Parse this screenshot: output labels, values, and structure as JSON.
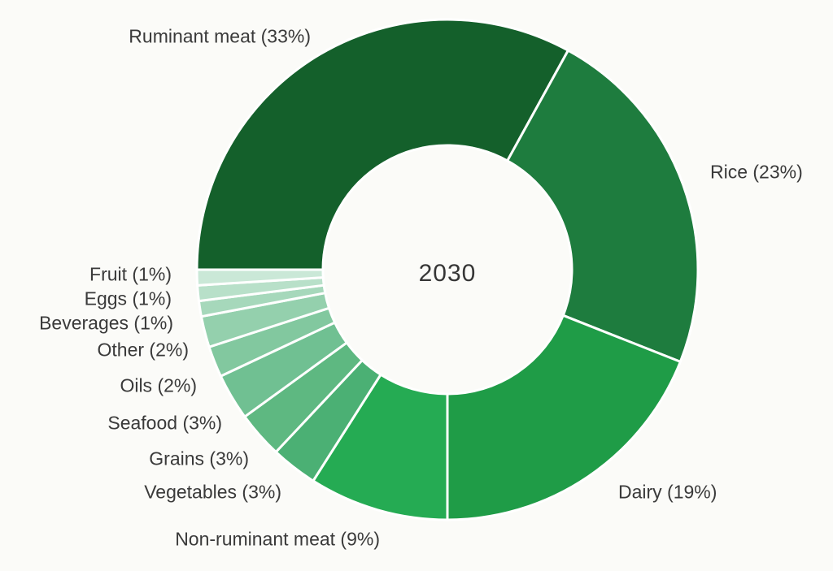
{
  "figure": {
    "background_color": "#fbfbf8",
    "label_text_color": "#3a3a3a",
    "gap_color": "#ffffff"
  },
  "chart_data": {
    "type": "pie",
    "subtype": "donut",
    "title": "",
    "center_label": "2030",
    "units": "%",
    "start_angle_deg_clockwise_from_top": 270,
    "direction": "clockwise",
    "inner_radius_ratio": 0.5,
    "legend_position": "around-chart",
    "grid": false,
    "segments": [
      {
        "name": "Ruminant meat",
        "value": 33,
        "label": "Ruminant meat (33%)",
        "color": "#14602b"
      },
      {
        "name": "Rice",
        "value": 23,
        "label": "Rice (23%)",
        "color": "#1e7c3e"
      },
      {
        "name": "Dairy",
        "value": 19,
        "label": "Dairy (19%)",
        "color": "#1f9c47"
      },
      {
        "name": "Non-ruminant meat",
        "value": 9,
        "label": "Non-ruminant meat (9%)",
        "color": "#25ab53"
      },
      {
        "name": "Vegetables",
        "value": 3,
        "label": "Vegetables (3%)",
        "color": "#4bb074"
      },
      {
        "name": "Grains",
        "value": 3,
        "label": "Grains (3%)",
        "color": "#5eb881"
      },
      {
        "name": "Seafood",
        "value": 3,
        "label": "Seafood (3%)",
        "color": "#70c092"
      },
      {
        "name": "Oils",
        "value": 2,
        "label": "Oils (2%)",
        "color": "#82c89f"
      },
      {
        "name": "Other",
        "value": 2,
        "label": "Other (2%)",
        "color": "#94d0ad"
      },
      {
        "name": "Beverages",
        "value": 1,
        "label": "Beverages (1%)",
        "color": "#a6d8bb"
      },
      {
        "name": "Eggs",
        "value": 1,
        "label": "Eggs (1%)",
        "color": "#b8e0c9"
      },
      {
        "name": "Fruit",
        "value": 1,
        "label": "Fruit (1%)",
        "color": "#cae8d7"
      }
    ]
  }
}
